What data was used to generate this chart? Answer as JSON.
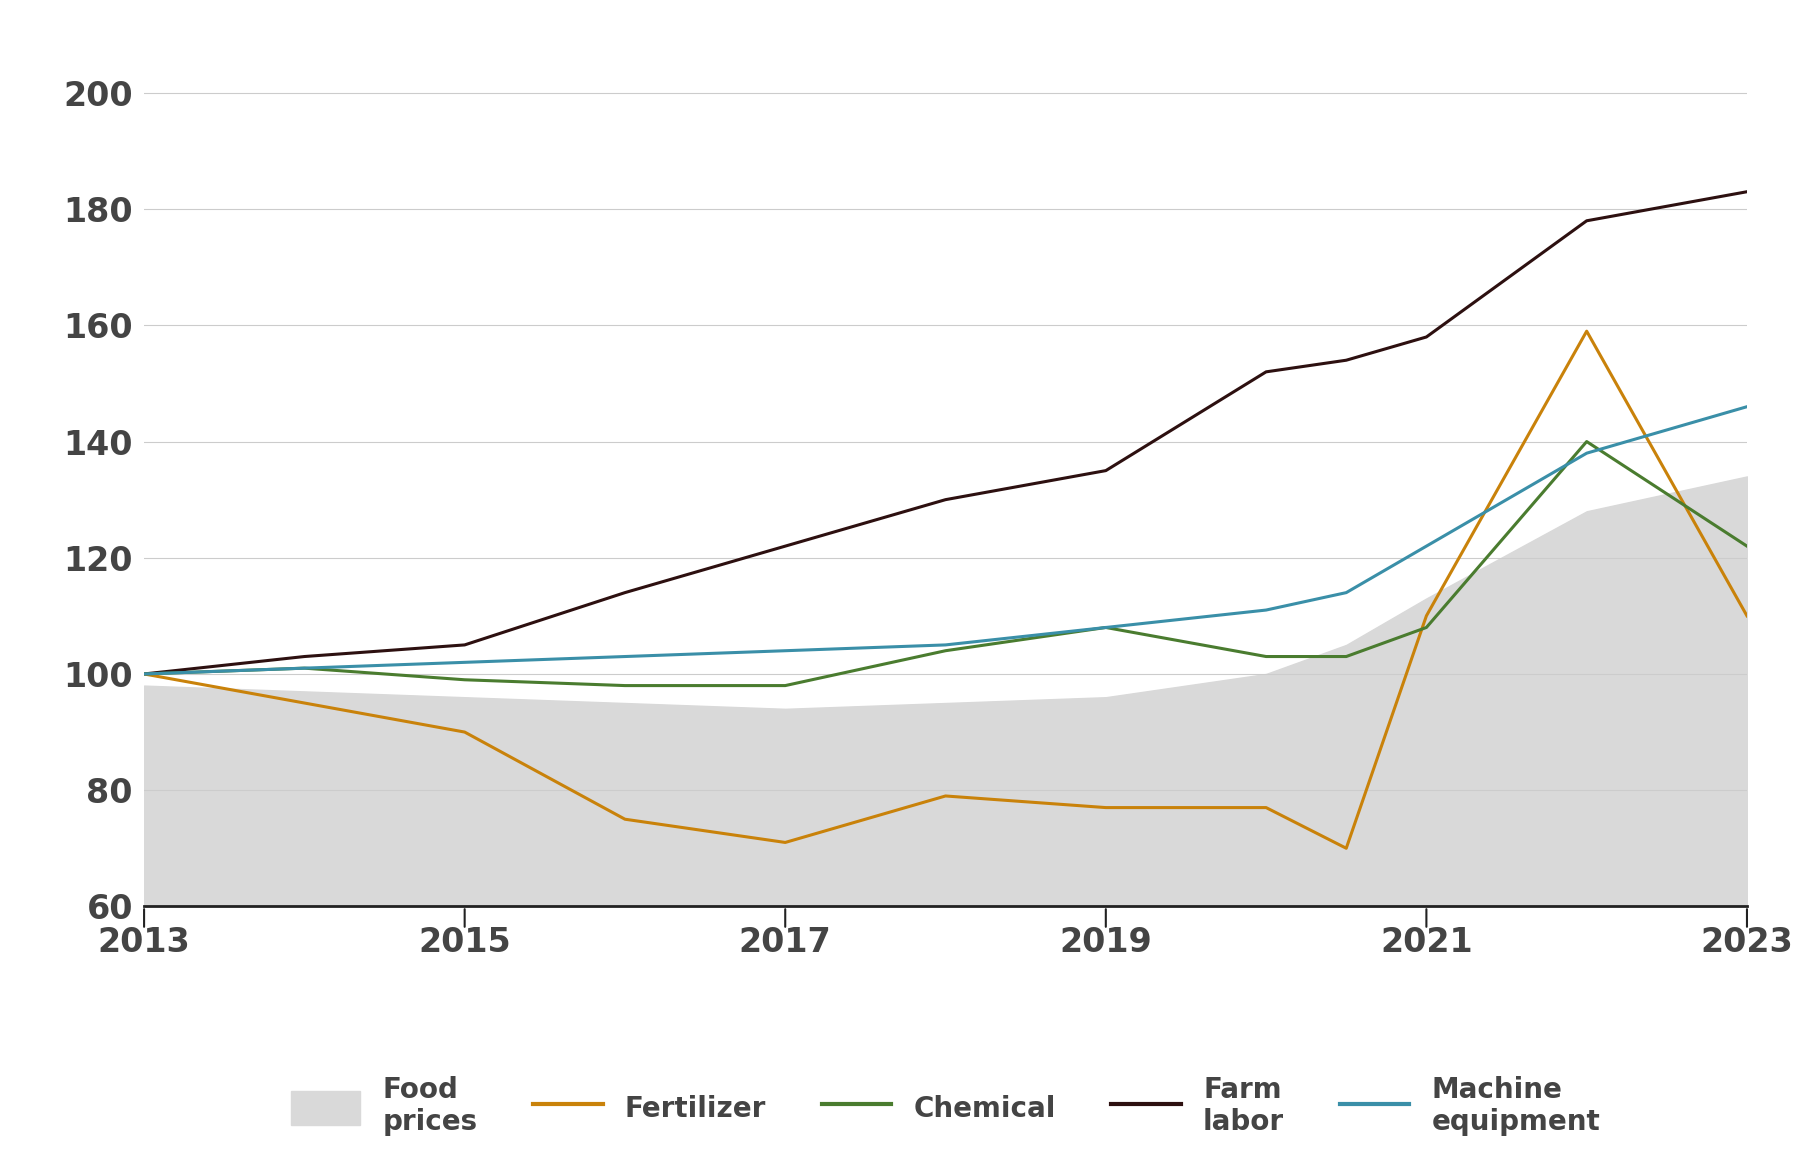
{
  "years": [
    2013,
    2014,
    2015,
    2016,
    2017,
    2018,
    2019,
    2020,
    2020.5,
    2021,
    2022,
    2023
  ],
  "food_prices": [
    98,
    97,
    96,
    95,
    94,
    95,
    96,
    100,
    105,
    113,
    128,
    134
  ],
  "fertilizer": [
    100,
    95,
    90,
    75,
    71,
    79,
    77,
    77,
    70,
    110,
    159,
    110
  ],
  "chemical": [
    100,
    101,
    99,
    98,
    98,
    104,
    108,
    103,
    103,
    108,
    140,
    122
  ],
  "farm_labor": [
    100,
    103,
    105,
    114,
    122,
    130,
    135,
    152,
    154,
    158,
    178,
    183
  ],
  "machine_equipment": [
    100,
    101,
    102,
    103,
    104,
    105,
    108,
    111,
    114,
    122,
    138,
    146
  ],
  "food_prices_color": "#d9d9d9",
  "fertilizer_color": "#c9820a",
  "chemical_color": "#4a7c2f",
  "farm_labor_color": "#2d1010",
  "machine_equipment_color": "#3a8fa8",
  "background_color": "#ffffff",
  "plot_bg_color": "#ffffff",
  "grid_color": "#cccccc",
  "yticks": [
    60,
    80,
    100,
    120,
    140,
    160,
    180,
    200
  ],
  "xticks": [
    2013,
    2015,
    2017,
    2019,
    2021,
    2023
  ],
  "ylim": [
    60,
    210
  ],
  "xlim": [
    2013,
    2023
  ],
  "line_width": 2.2,
  "tick_fontsize": 24,
  "legend_fontsize": 20
}
